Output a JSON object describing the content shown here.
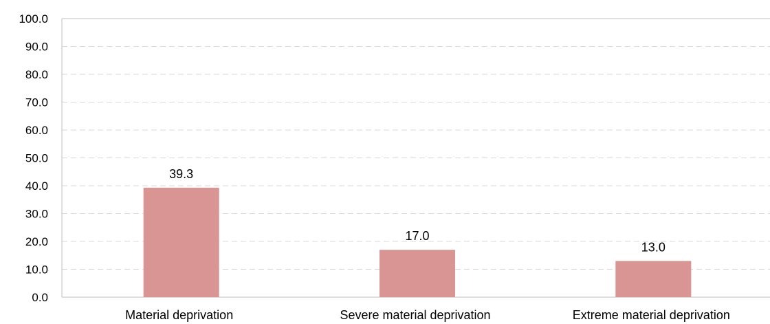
{
  "chart_data": {
    "type": "bar",
    "categories": [
      "Material deprivation",
      "Severe material deprivation",
      "Extreme material deprivation"
    ],
    "values": [
      39.3,
      17.0,
      13.0
    ],
    "data_labels": [
      "39.3",
      "17.0",
      "13.0"
    ],
    "ylim": [
      0,
      100
    ],
    "y_ticks": [
      "0.0",
      "10.0",
      "20.0",
      "30.0",
      "40.0",
      "50.0",
      "60.0",
      "70.0",
      "80.0",
      "90.0",
      "100.0"
    ],
    "grid": true,
    "bar_color": "#d99594",
    "grid_color": "#d9d9d9",
    "axis_color": "#bfbfbf"
  }
}
